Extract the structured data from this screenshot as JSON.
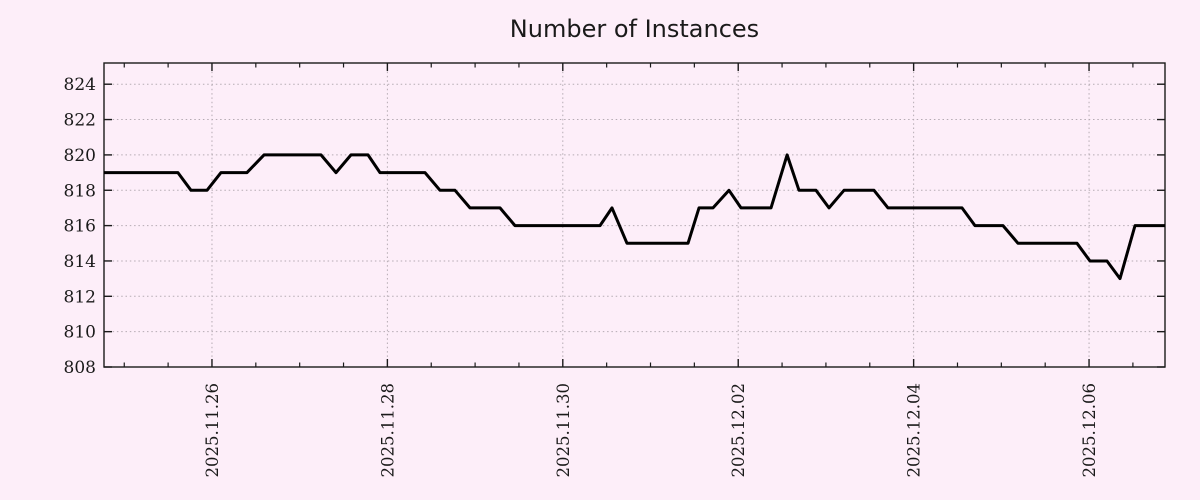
{
  "title": "Number of Instances",
  "colors": {
    "background": "#fdeef9",
    "line": "#000000",
    "border": "#1a1a1a",
    "grid": "#b5abb3",
    "text": "#1a1a1a"
  },
  "chart_data": {
    "type": "line",
    "title": "Number of Instances",
    "xlabel": "",
    "ylabel": "",
    "grid": true,
    "legend": false,
    "x_unit": "days since 2025-11-26 00:00",
    "xlim": [
      -1.231,
      10.866
    ],
    "ylim": [
      808,
      825.2
    ],
    "y_ticks": [
      808,
      810,
      812,
      814,
      816,
      818,
      820,
      822,
      824
    ],
    "x_ticks": [
      {
        "offset": 0,
        "label": "2025.11.26"
      },
      {
        "offset": 2,
        "label": "2025.11.28"
      },
      {
        "offset": 4,
        "label": "2025.11.30"
      },
      {
        "offset": 6,
        "label": "2025.12.02"
      },
      {
        "offset": 8,
        "label": "2025.12.04"
      },
      {
        "offset": 10,
        "label": "2025.12.06"
      }
    ],
    "x_minor_tick_step": 0.5,
    "series": [
      {
        "name": "instances",
        "points": [
          [
            -1.231,
            819
          ],
          [
            -0.388,
            819
          ],
          [
            -0.239,
            818
          ],
          [
            -0.057,
            818
          ],
          [
            0.103,
            819
          ],
          [
            0.399,
            819
          ],
          [
            0.593,
            820
          ],
          [
            1.243,
            820
          ],
          [
            1.414,
            819
          ],
          [
            1.585,
            820
          ],
          [
            1.779,
            820
          ],
          [
            1.916,
            819
          ],
          [
            2.429,
            819
          ],
          [
            2.6,
            818
          ],
          [
            2.771,
            818
          ],
          [
            2.942,
            817
          ],
          [
            3.284,
            817
          ],
          [
            3.455,
            816
          ],
          [
            4.424,
            816
          ],
          [
            4.561,
            817
          ],
          [
            4.732,
            815
          ],
          [
            5.428,
            815
          ],
          [
            5.553,
            817
          ],
          [
            5.713,
            817
          ],
          [
            5.895,
            818
          ],
          [
            6.032,
            817
          ],
          [
            6.374,
            817
          ],
          [
            6.557,
            820
          ],
          [
            6.693,
            818
          ],
          [
            6.887,
            818
          ],
          [
            7.035,
            817
          ],
          [
            7.206,
            818
          ],
          [
            7.548,
            818
          ],
          [
            7.708,
            817
          ],
          [
            8.552,
            817
          ],
          [
            8.7,
            816
          ],
          [
            9.019,
            816
          ],
          [
            9.19,
            815
          ],
          [
            9.863,
            815
          ],
          [
            10.011,
            814
          ],
          [
            10.205,
            814
          ],
          [
            10.353,
            813
          ],
          [
            10.524,
            816
          ],
          [
            10.866,
            816
          ]
        ]
      }
    ]
  }
}
